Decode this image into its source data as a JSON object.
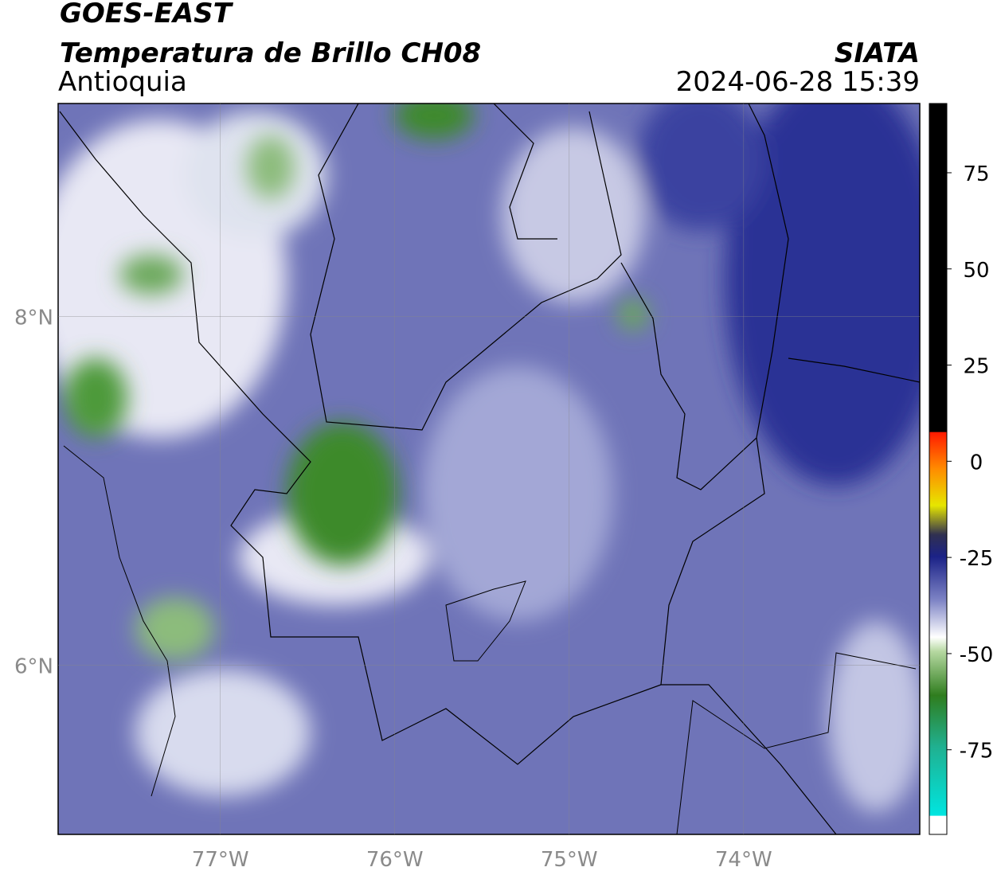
{
  "header": {
    "title": "GOES-EAST",
    "subtitle": "Temperatura de Brillo CH08",
    "region": "Antioquia",
    "source": "SIATA",
    "timestamp": "2024-06-28 15:39"
  },
  "map": {
    "xlim": [
      -77.93,
      -72.99
    ],
    "ylim": [
      5.03,
      9.22
    ],
    "xticks": [
      {
        "value": -77,
        "label": "77°W"
      },
      {
        "value": -76,
        "label": "76°W"
      },
      {
        "value": -75,
        "label": "75°W"
      },
      {
        "value": -74,
        "label": "74°W"
      }
    ],
    "yticks": [
      {
        "value": 8,
        "label": "8°N"
      },
      {
        "value": 6,
        "label": "6°N"
      }
    ],
    "grid": true
  },
  "colorbar": {
    "lim": [
      -97,
      93
    ],
    "ticks": [
      75,
      50,
      25,
      0,
      -25,
      -50,
      -75
    ]
  }
}
